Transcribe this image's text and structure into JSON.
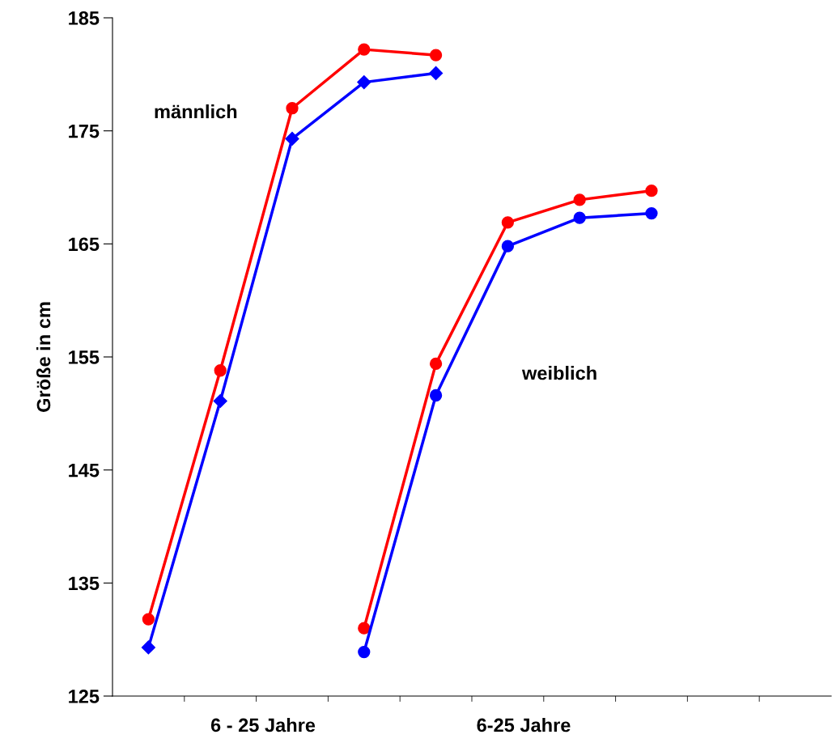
{
  "chart_data": {
    "type": "line",
    "ylabel": "Größe in cm",
    "categories": [
      null,
      null,
      null,
      null,
      null,
      null,
      null,
      null,
      null,
      null
    ],
    "series": [
      {
        "color": "#ff0000",
        "marker": "circle",
        "values": [
          131.8,
          153.8,
          177.0,
          182.2,
          181.7,
          null,
          null,
          null,
          null,
          null
        ]
      },
      {
        "color": "#0000ff",
        "marker": "diamond",
        "values": [
          129.3,
          151.1,
          174.3,
          179.3,
          180.1,
          null,
          null,
          null,
          null,
          null
        ]
      },
      {
        "color": "#ff0000",
        "marker": "circle",
        "values": [
          null,
          null,
          null,
          131.0,
          154.4,
          166.9,
          168.9,
          169.7,
          null,
          null
        ]
      },
      {
        "color": "#0000ff",
        "marker": "circle",
        "values": [
          null,
          null,
          null,
          128.9,
          151.6,
          164.8,
          167.3,
          167.7,
          null,
          null
        ]
      }
    ],
    "ylim": [
      125,
      185
    ],
    "yticks": [
      125,
      135,
      145,
      155,
      165,
      175,
      185
    ],
    "grid": false,
    "legend": false,
    "line_style": "solid",
    "annotations": [
      "männlich",
      "weiblich",
      "6 - 25 Jahre",
      "6-25 Jahre"
    ]
  }
}
